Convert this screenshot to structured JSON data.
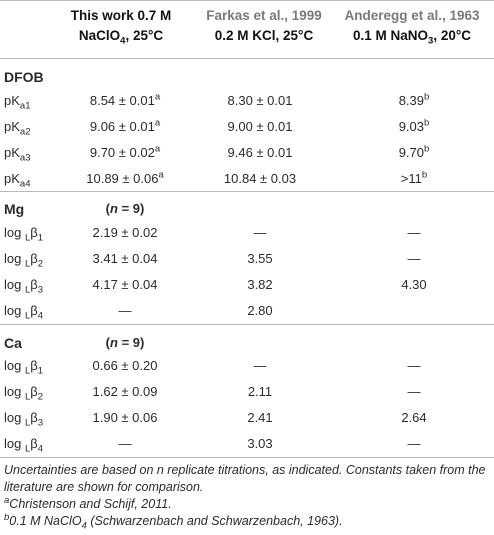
{
  "header": {
    "col1_title": "This work 0.7 M",
    "col1_sub": "NaClO",
    "col1_sub_subscript": "4",
    "col1_sub_after": ", 25°C",
    "col2_title": "Farkas et al., 1999",
    "col2_sub": "0.2 M KCl, 25°C",
    "col3_title": "Anderegg et al., 1963",
    "col3_sub": "0.1 M NaNO",
    "col3_sub_subscript": "3",
    "col3_sub_after": ", 20°C"
  },
  "dfob": {
    "label": "DFOB",
    "rows": [
      {
        "p": "pK",
        "s": "a1",
        "v1": "8.54 ± 0.01",
        "v1_sup": "a",
        "v2": "8.30 ± 0.01",
        "v3": "8.39",
        "v3_sup": "b"
      },
      {
        "p": "pK",
        "s": "a2",
        "v1": "9.06 ± 0.01",
        "v1_sup": "a",
        "v2": "9.00 ± 0.01",
        "v3": "9.03",
        "v3_sup": "b"
      },
      {
        "p": "pK",
        "s": "a3",
        "v1": "9.70 ± 0.02",
        "v1_sup": "a",
        "v2": "9.46 ± 0.01",
        "v3": "9.70",
        "v3_sup": "b"
      },
      {
        "p": "pK",
        "s": "a4",
        "v1": "10.89 ± 0.06",
        "v1_sup": "a",
        "v2": "10.84 ± 0.03",
        "v3": ">11",
        "v3_sup": "b"
      }
    ]
  },
  "mg": {
    "label": "Mg",
    "n_label": "(n = 9)",
    "rows": [
      {
        "p": "log ",
        "s": "L",
        "g": "β",
        "gs": "1",
        "v1": "2.19 ± 0.02",
        "v2": "—",
        "v3": "—"
      },
      {
        "p": "log ",
        "s": "L",
        "g": "β",
        "gs": "2",
        "v1": "3.41 ± 0.04",
        "v2": "3.55",
        "v3": "—"
      },
      {
        "p": "log ",
        "s": "L",
        "g": "β",
        "gs": "3",
        "v1": "4.17 ± 0.04",
        "v2": "3.82",
        "v3": "4.30"
      },
      {
        "p": "log ",
        "s": "L",
        "g": "β",
        "gs": "4",
        "v1": "—",
        "v2": "2.80",
        "v3": ""
      }
    ]
  },
  "ca": {
    "label": "Ca",
    "n_label": "(n = 9)",
    "rows": [
      {
        "p": "log ",
        "s": "L",
        "g": "β",
        "gs": "1",
        "v1": "0.66 ± 0.20",
        "v2": "—",
        "v3": "—"
      },
      {
        "p": "log ",
        "s": "L",
        "g": "β",
        "gs": "2",
        "v1": "1.62 ± 0.09",
        "v2": "2.11",
        "v3": "—"
      },
      {
        "p": "log ",
        "s": "L",
        "g": "β",
        "gs": "3",
        "v1": "1.90 ± 0.06",
        "v2": "2.41",
        "v3": "2.64"
      },
      {
        "p": "log ",
        "s": "L",
        "g": "β",
        "gs": "4",
        "v1": "—",
        "v2": "3.03",
        "v3": "—"
      }
    ]
  },
  "footer": {
    "note": "Uncertainties are based on n replicate titrations, as indicated. Constants taken from the literature are shown for comparison.",
    "fn_a_mark": "a",
    "fn_a_text": "Christenson and Schijf, 2011.",
    "fn_b_mark": "b",
    "fn_b_text_pre": "0.1 M NaClO",
    "fn_b_sub": "4",
    "fn_b_text_post": " (Schwarzenbach and Schwarzenbach, 1963)."
  }
}
